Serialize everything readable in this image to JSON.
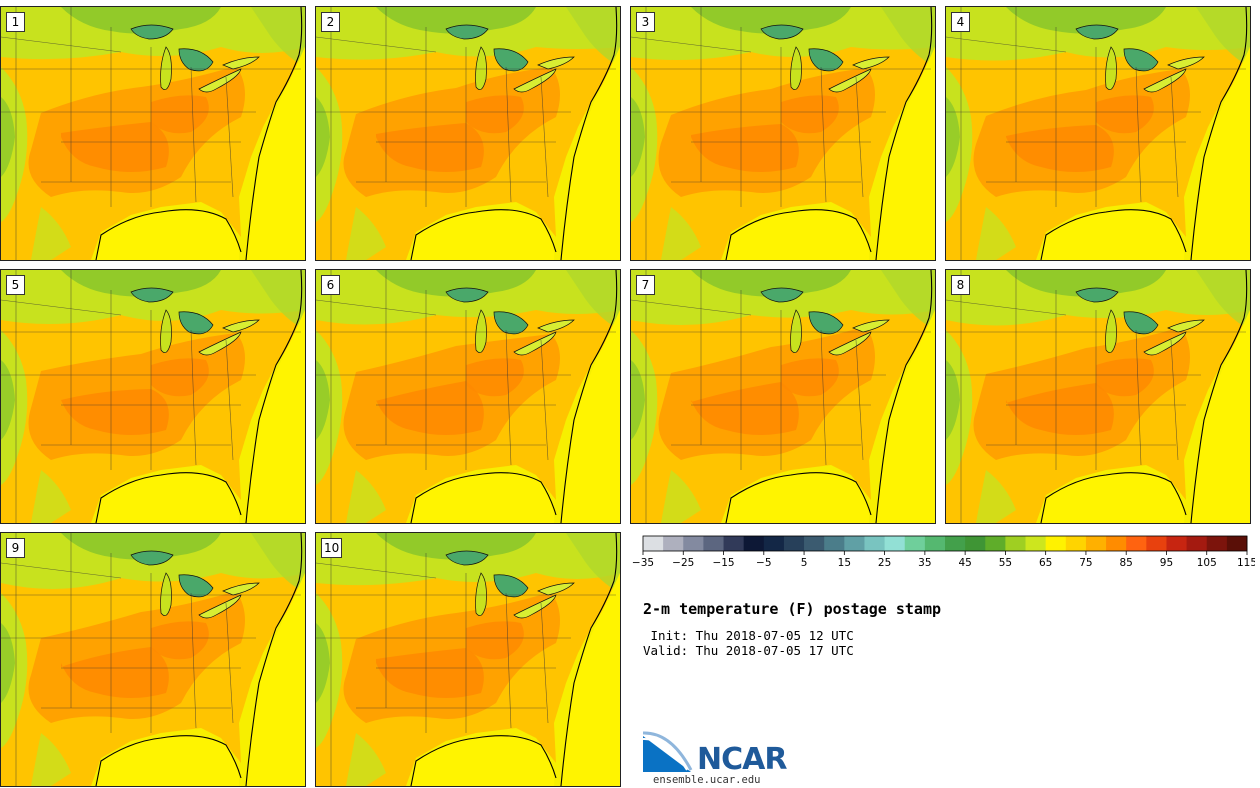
{
  "panels": [
    {
      "label": "1"
    },
    {
      "label": "2"
    },
    {
      "label": "3"
    },
    {
      "label": "4"
    },
    {
      "label": "5"
    },
    {
      "label": "6"
    },
    {
      "label": "7"
    },
    {
      "label": "8"
    },
    {
      "label": "9"
    },
    {
      "label": "10"
    }
  ],
  "colorbar": {
    "colors": [
      "#dcdfe3",
      "#aeb0be",
      "#838aa0",
      "#5c6680",
      "#313a59",
      "#0d1836",
      "#132746",
      "#27405a",
      "#3b5b70",
      "#4b7d8a",
      "#60a0a5",
      "#79c4c0",
      "#92e0d5",
      "#6fcf9b",
      "#55b870",
      "#43a04b",
      "#3f9535",
      "#5fad2a",
      "#9fcf22",
      "#cde61e",
      "#fff200",
      "#ffd400",
      "#ffb000",
      "#ff8c00",
      "#ff6310",
      "#e8410e",
      "#c72511",
      "#a41a10",
      "#7c140c",
      "#5a0f07"
    ],
    "tick_labels": [
      "−35",
      "−25",
      "−15",
      "−5",
      "5",
      "15",
      "25",
      "35",
      "45",
      "55",
      "65",
      "75",
      "85",
      "95",
      "105",
      "115"
    ]
  },
  "title": "2-m temperature (F) postage stamp",
  "init_line": " Init: Thu 2018-07-05 12 UTC",
  "valid_line": "Valid: Thu 2018-07-05 17 UTC",
  "logo": {
    "text": "NCAR",
    "url": "ensemble.ucar.edu"
  }
}
